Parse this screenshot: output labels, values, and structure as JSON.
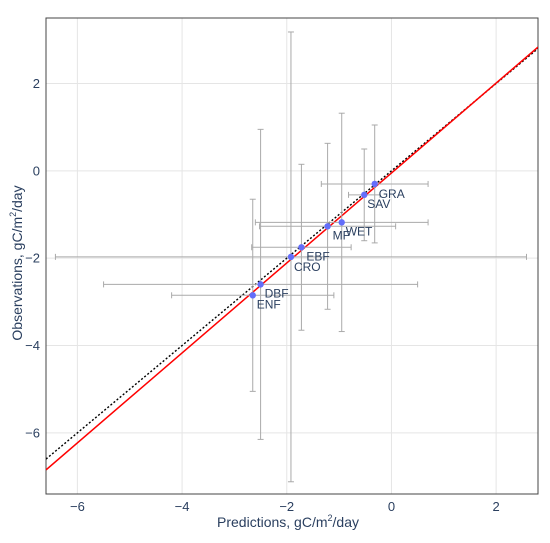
{
  "chart_data": {
    "type": "scatter",
    "title": "",
    "xlabel_parts": [
      "Predictions, gC/m",
      "2",
      "/day"
    ],
    "ylabel_parts": [
      "Observations, gC/m",
      "2",
      "/day"
    ],
    "xlim": [
      -6.6,
      2.8
    ],
    "ylim": [
      -7.4,
      3.5
    ],
    "x_ticks": [
      -6,
      -4,
      -2,
      0,
      2
    ],
    "x_tick_labels": [
      "−6",
      "−4",
      "−2",
      "0",
      "2"
    ],
    "y_ticks": [
      -6,
      -4,
      -2,
      0,
      2
    ],
    "y_tick_labels": [
      "−6",
      "−4",
      "−2",
      "0",
      "2"
    ],
    "grid": true,
    "points": [
      {
        "label": "GRA",
        "x": -0.32,
        "y": -0.3,
        "x_err": 1.02,
        "y_err": 1.35
      },
      {
        "label": "SAV",
        "x": -0.52,
        "y": -0.55,
        "x_err": 0.3,
        "y_err": 1.05
      },
      {
        "label": "WET",
        "x": -0.95,
        "y": -1.18,
        "x_err": 1.65,
        "y_err": 2.5
      },
      {
        "label": "MF",
        "x": -1.22,
        "y": -1.27,
        "x_err": 1.3,
        "y_err": 1.9
      },
      {
        "label": "EBF",
        "x": -1.72,
        "y": -1.75,
        "x_err": 0.95,
        "y_err": 1.9
      },
      {
        "label": "CRO",
        "x": -1.92,
        "y": -1.97,
        "x_err": 4.5,
        "y_err": 5.15
      },
      {
        "label": "DBF",
        "x": -2.5,
        "y": -2.6,
        "x_err": 3.0,
        "y_err": 3.55
      },
      {
        "label": "ENF",
        "x": -2.65,
        "y": -2.85,
        "x_err": 1.55,
        "y_err": 2.2
      }
    ],
    "fit_line": {
      "slope": 1.03,
      "intercept": -0.05,
      "color": "#ff0000"
    },
    "identity_line": {
      "slope": 1,
      "intercept": 0,
      "color": "#000000",
      "style": "dotted"
    },
    "marker_color": "#636efa",
    "error_bar_color": "#aaaaaa"
  }
}
